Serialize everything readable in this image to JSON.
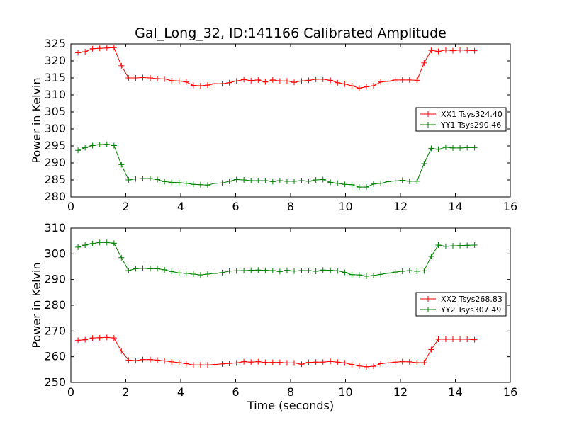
{
  "chart_data": {
    "type": "line",
    "title": "Gal_Long_32, ID:141166 Calibrated Amplitude",
    "xlabel": "Time (seconds)",
    "grid": false,
    "marker": "+",
    "x": [
      0.26,
      0.52,
      0.79,
      1.05,
      1.31,
      1.57,
      1.84,
      2.1,
      2.36,
      2.62,
      2.89,
      3.15,
      3.41,
      3.67,
      3.94,
      4.2,
      4.46,
      4.72,
      4.98,
      5.25,
      5.51,
      5.77,
      6.03,
      6.3,
      6.56,
      6.82,
      7.08,
      7.35,
      7.61,
      7.87,
      8.13,
      8.4,
      8.66,
      8.92,
      9.18,
      9.45,
      9.71,
      9.97,
      10.23,
      10.5,
      10.76,
      11.02,
      11.28,
      11.55,
      11.81,
      12.07,
      12.33,
      12.6,
      12.86,
      13.12,
      13.38,
      13.65,
      13.91,
      14.17,
      14.43,
      14.7
    ],
    "panels": [
      {
        "ylabel": "Power in Kelvin",
        "xlim": [
          0,
          16
        ],
        "ylim": [
          280,
          325
        ],
        "xticks": [
          "0",
          "2",
          "4",
          "6",
          "8",
          "10",
          "12",
          "14",
          "16"
        ],
        "yticks": [
          "280",
          "285",
          "290",
          "295",
          "300",
          "305",
          "310",
          "315",
          "320",
          "325"
        ],
        "legend_position": "right",
        "series": [
          {
            "name": "XX1 Tsys324.40",
            "color": "#ff0000",
            "values": [
              322.4,
              322.7,
              323.6,
              323.7,
              323.8,
              323.9,
              318.6,
              315.0,
              315.0,
              315.1,
              315.0,
              314.8,
              314.7,
              314.2,
              314.1,
              313.8,
              312.8,
              312.7,
              312.9,
              313.3,
              313.3,
              313.6,
              314.1,
              314.5,
              314.2,
              314.4,
              313.8,
              314.4,
              314.1,
              314.1,
              313.7,
              314.1,
              314.3,
              314.6,
              314.6,
              314.3,
              313.6,
              313.2,
              312.7,
              312.0,
              312.4,
              312.7,
              313.8,
              314.0,
              314.4,
              314.4,
              314.4,
              314.3,
              319.4,
              323.1,
              322.8,
              323.2,
              323.0,
              323.2,
              323.1,
              323.0
            ]
          },
          {
            "name": "YY1 Tsys290.46",
            "color": "#008000",
            "values": [
              293.7,
              294.5,
              295.1,
              295.4,
              295.5,
              295.1,
              289.5,
              285.0,
              285.3,
              285.4,
              285.4,
              285.1,
              284.5,
              284.3,
              284.2,
              284.0,
              283.7,
              283.6,
              283.5,
              284.0,
              284.1,
              284.6,
              285.1,
              285.0,
              284.8,
              284.8,
              284.8,
              284.5,
              284.8,
              284.6,
              284.6,
              284.8,
              284.6,
              285.0,
              285.1,
              284.3,
              284.0,
              283.7,
              283.6,
              282.9,
              282.9,
              283.8,
              284.0,
              284.5,
              284.7,
              284.9,
              284.6,
              284.6,
              289.8,
              294.3,
              294.0,
              294.6,
              294.4,
              294.4,
              294.5,
              294.5
            ]
          }
        ]
      },
      {
        "ylabel": "Power in Kelvin",
        "xlabel": "Time (seconds)",
        "xlim": [
          0,
          16
        ],
        "ylim": [
          250,
          310
        ],
        "xticks": [
          "0",
          "2",
          "4",
          "6",
          "8",
          "10",
          "12",
          "14",
          "16"
        ],
        "yticks": [
          "250",
          "260",
          "270",
          "280",
          "290",
          "300",
          "310"
        ],
        "legend_position": "right",
        "series": [
          {
            "name": "XX2 Tsys268.83",
            "color": "#ff0000",
            "values": [
              266.4,
              266.6,
              267.3,
              267.4,
              267.5,
              267.3,
              262.2,
              258.7,
              258.5,
              258.9,
              258.9,
              258.7,
              258.4,
              258.0,
              257.7,
              257.3,
              256.8,
              256.8,
              256.8,
              257.0,
              257.2,
              257.4,
              257.6,
              258.1,
              257.9,
              258.1,
              257.8,
              257.8,
              257.8,
              257.6,
              257.6,
              257.1,
              257.8,
              257.9,
              257.9,
              258.2,
              257.9,
              257.6,
              257.0,
              256.4,
              256.1,
              256.3,
              257.3,
              257.6,
              257.9,
              258.1,
              258.0,
              257.7,
              257.7,
              262.8,
              266.8,
              266.8,
              266.8,
              266.8,
              266.8,
              266.6
            ]
          },
          {
            "name": "YY2 Tsys307.49",
            "color": "#008000",
            "values": [
              302.6,
              303.4,
              304.0,
              304.4,
              304.4,
              304.1,
              298.5,
              293.5,
              294.2,
              294.4,
              294.2,
              294.2,
              293.8,
              293.1,
              292.6,
              292.4,
              292.1,
              291.8,
              292.1,
              292.4,
              292.7,
              293.3,
              293.4,
              293.5,
              293.6,
              293.7,
              293.6,
              293.5,
              293.1,
              293.6,
              293.3,
              293.5,
              293.5,
              293.2,
              293.7,
              293.6,
              293.4,
              292.8,
              291.9,
              291.8,
              291.3,
              291.6,
              292.0,
              292.5,
              292.9,
              293.2,
              293.5,
              293.2,
              293.4,
              299.0,
              303.4,
              302.9,
              303.1,
              303.2,
              303.3,
              303.4
            ]
          }
        ]
      }
    ]
  }
}
